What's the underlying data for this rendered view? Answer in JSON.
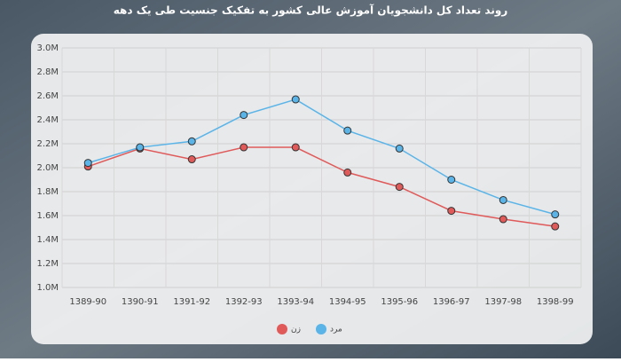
{
  "chart_data": {
    "type": "line",
    "title": "روند تعداد کل دانشجویان آموزش عالی کشور به تفکیک جنسیت طی یک دهه",
    "categories": [
      "1389-90",
      "1390-91",
      "1391-92",
      "1392-93",
      "1393-94",
      "1394-95",
      "1395-96",
      "1396-97",
      "1397-98",
      "1398-99"
    ],
    "series": [
      {
        "name": "زن",
        "color": "#e05a5a",
        "values": [
          2010000,
          2160000,
          2070000,
          2170000,
          2170000,
          1960000,
          1840000,
          1640000,
          1570000,
          1510000
        ]
      },
      {
        "name": "مرد",
        "color": "#5ab4e8",
        "values": [
          2040000,
          2170000,
          2220000,
          2440000,
          2570000,
          2310000,
          2160000,
          1900000,
          1730000,
          1610000
        ]
      }
    ],
    "ylim": [
      1000000,
      3000000
    ],
    "yticks": [
      {
        "value": 1000000,
        "label": "1.0M"
      },
      {
        "value": 1200000,
        "label": "1.2M"
      },
      {
        "value": 1400000,
        "label": "1.4M"
      },
      {
        "value": 1600000,
        "label": "1.6M"
      },
      {
        "value": 1800000,
        "label": "1.8M"
      },
      {
        "value": 2000000,
        "label": "2.0M"
      },
      {
        "value": 2200000,
        "label": "2.2M"
      },
      {
        "value": 2400000,
        "label": "2.4M"
      },
      {
        "value": 2600000,
        "label": "2.6M"
      },
      {
        "value": 2800000,
        "label": "2.8M"
      },
      {
        "value": 3000000,
        "label": "3.0M"
      }
    ],
    "grid": true
  }
}
